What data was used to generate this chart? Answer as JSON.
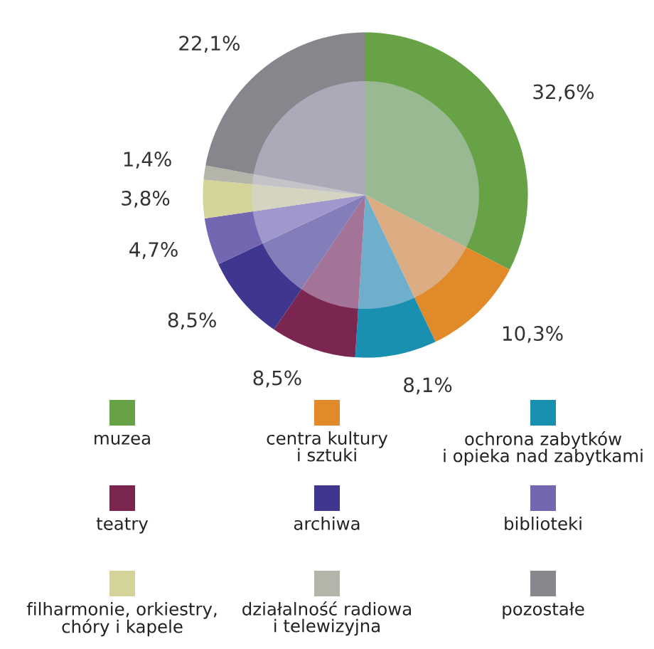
{
  "chart_data": {
    "type": "donut",
    "categories": [
      "muzea",
      "centra kultury\ni sztuki",
      "ochrona zabytków\ni opieka nad zabytkami",
      "teatry",
      "archiwa",
      "biblioteki",
      "filharmonie, orkiestry,\nchóry i kapele",
      "działalność radiowa\ni telewizyjna",
      "pozostałe"
    ],
    "values": [
      32.6,
      10.3,
      8.1,
      8.5,
      8.5,
      4.7,
      3.8,
      1.4,
      22.1
    ],
    "value_labels": [
      "32,6%",
      "10,3%",
      "8,1%",
      "8,5%",
      "8,5%",
      "4,7%",
      "3,8%",
      "1,4%",
      "22,1%"
    ],
    "colors": [
      "#67a346",
      "#e08a2a",
      "#1a90b0",
      "#7a2650",
      "#3f378f",
      "#7466b0",
      "#d4d49a",
      "#b4b4a8",
      "#86878c"
    ],
    "legend": "bottom"
  }
}
